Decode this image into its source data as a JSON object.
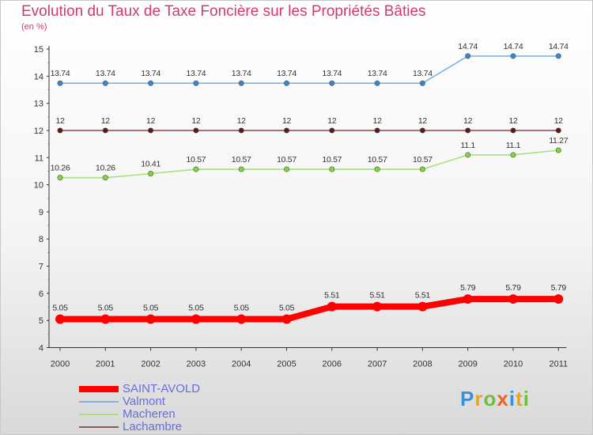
{
  "title": "Evolution du Taux de Taxe Foncière sur les Propriétés Bâties",
  "unit": "(en %)",
  "logo": {
    "letters": [
      "P",
      "r",
      "o",
      "x",
      "i",
      "t",
      "i"
    ],
    "colors": [
      "#3a8fd6",
      "#e8a32a",
      "#6fbf3a",
      "#e8642a",
      "#3a8fd6",
      "#e8a32a",
      "#6fbf3a"
    ]
  },
  "chart_data": {
    "type": "line",
    "title": "Evolution du Taux de Taxe Foncière sur les Propriétés Bâties",
    "ylabel": "(en %)",
    "ylim": [
      4,
      15
    ],
    "yticks": [
      "4",
      "5",
      "6",
      "7",
      "8",
      "9",
      "10",
      "11",
      "12",
      "13",
      "14",
      "15"
    ],
    "categories": [
      "2000",
      "2001",
      "2002",
      "2003",
      "2004",
      "2005",
      "2006",
      "2007",
      "2008",
      "2009",
      "2010",
      "2011"
    ],
    "series": [
      {
        "name": "SAINT-AVOLD",
        "color": "#ff0000",
        "values": [
          5.05,
          5.05,
          5.05,
          5.05,
          5.05,
          5.05,
          5.51,
          5.51,
          5.51,
          5.79,
          5.79,
          5.79
        ],
        "labels": [
          "5.05",
          "5.05",
          "5.05",
          "5.05",
          "5.05",
          "5.05",
          "5.51",
          "5.51",
          "5.51",
          "5.79",
          "5.79",
          "5.79"
        ]
      },
      {
        "name": "Valmont",
        "color": "#7fb3e0",
        "values": [
          13.74,
          13.74,
          13.74,
          13.74,
          13.74,
          13.74,
          13.74,
          13.74,
          13.74,
          14.74,
          14.74,
          14.74
        ],
        "labels": [
          "13.74",
          "13.74",
          "13.74",
          "13.74",
          "13.74",
          "13.74",
          "13.74",
          "13.74",
          "13.74",
          "14.74",
          "14.74",
          "14.74"
        ]
      },
      {
        "name": "Macheren",
        "color": "#a8e07f",
        "values": [
          10.26,
          10.26,
          10.41,
          10.57,
          10.57,
          10.57,
          10.57,
          10.57,
          10.57,
          11.1,
          11.1,
          11.27
        ],
        "labels": [
          "10.26",
          "10.26",
          "10.41",
          "10.57",
          "10.57",
          "10.57",
          "10.57",
          "10.57",
          "10.57",
          "11.1",
          "11.1",
          "11.27"
        ]
      },
      {
        "name": "Lachambre",
        "color": "#8a5a5a",
        "values": [
          12,
          12,
          12,
          12,
          12,
          12,
          12,
          12,
          12,
          12,
          12,
          12
        ],
        "labels": [
          "12",
          "12",
          "12",
          "12",
          "12",
          "12",
          "12",
          "12",
          "12",
          "12",
          "12",
          "12"
        ]
      }
    ],
    "grid": false,
    "legend": "bottom-left"
  }
}
